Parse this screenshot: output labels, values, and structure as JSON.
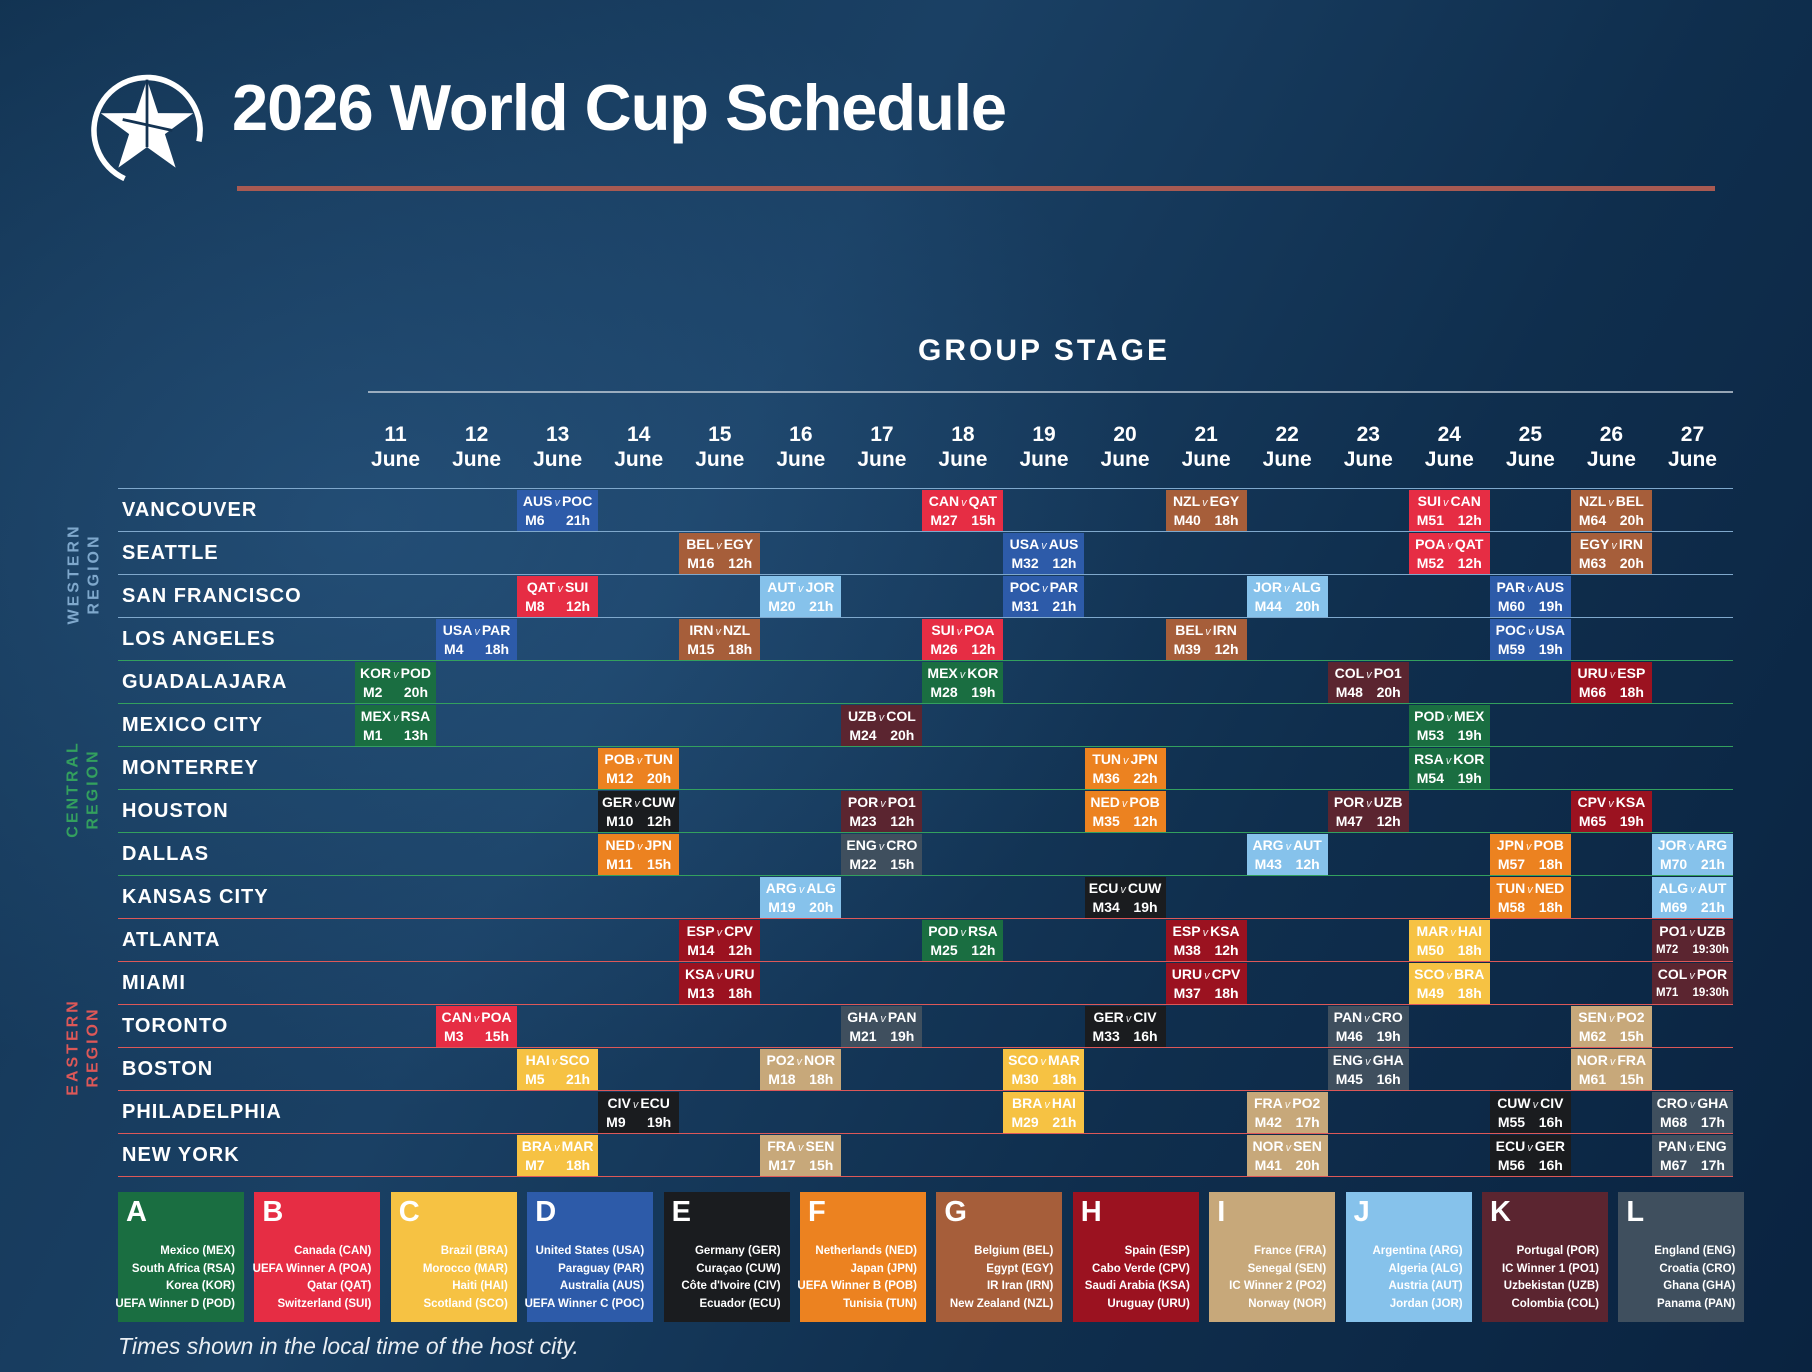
{
  "header": {
    "title": "2026 World Cup Schedule"
  },
  "stage_title": "GROUP STAGE",
  "footer_note": "Times shown in the local time of the host city.",
  "colors": {
    "groups": {
      "A": "#1a6e41",
      "B": "#e62d44",
      "C": "#f6c243",
      "D": "#2d5ba9",
      "E": "#1a1c1f",
      "F": "#ec8220",
      "G": "#a65e3a",
      "H": "#9b1220",
      "I": "#c7a87a",
      "J": "#86c2eb",
      "K": "#5b2530",
      "L": "#3f4f5e"
    },
    "regions": {
      "western": "#7fa8cc",
      "central": "#33a05e",
      "eastern": "#dd5858"
    },
    "title_underline": "#a85a52",
    "header_rule": "#c4cfd9"
  },
  "chart_data": {
    "type": "table",
    "title": "GROUP STAGE",
    "columns": [
      "11 June",
      "12 June",
      "13 June",
      "14 June",
      "15 June",
      "16 June",
      "17 June",
      "18 June",
      "19 June",
      "20 June",
      "21 June",
      "22 June",
      "23 June",
      "24 June",
      "25 June",
      "26 June",
      "27 June"
    ],
    "regions": [
      {
        "id": "western",
        "label": [
          "WESTERN",
          "REGION"
        ],
        "rows": [
          0,
          3
        ]
      },
      {
        "id": "central",
        "label": [
          "CENTRAL",
          "REGION"
        ],
        "rows": [
          4,
          9
        ]
      },
      {
        "id": "eastern",
        "label": [
          "EASTERN",
          "REGION"
        ],
        "rows": [
          10,
          15
        ]
      }
    ],
    "rows": [
      {
        "city": "VANCOUVER",
        "region": "western",
        "matches": [
          {
            "col": 2,
            "home": "AUS",
            "away": "POC",
            "match": "M6",
            "time": "21h",
            "group": "D"
          },
          {
            "col": 7,
            "home": "CAN",
            "away": "QAT",
            "match": "M27",
            "time": "15h",
            "group": "B"
          },
          {
            "col": 10,
            "home": "NZL",
            "away": "EGY",
            "match": "M40",
            "time": "18h",
            "group": "G"
          },
          {
            "col": 13,
            "home": "SUI",
            "away": "CAN",
            "match": "M51",
            "time": "12h",
            "group": "B"
          },
          {
            "col": 15,
            "home": "NZL",
            "away": "BEL",
            "match": "M64",
            "time": "20h",
            "group": "G"
          }
        ]
      },
      {
        "city": "SEATTLE",
        "region": "western",
        "matches": [
          {
            "col": 4,
            "home": "BEL",
            "away": "EGY",
            "match": "M16",
            "time": "12h",
            "group": "G"
          },
          {
            "col": 8,
            "home": "USA",
            "away": "AUS",
            "match": "M32",
            "time": "12h",
            "group": "D"
          },
          {
            "col": 13,
            "home": "POA",
            "away": "QAT",
            "match": "M52",
            "time": "12h",
            "group": "B"
          },
          {
            "col": 15,
            "home": "EGY",
            "away": "IRN",
            "match": "M63",
            "time": "20h",
            "group": "G"
          }
        ]
      },
      {
        "city": "SAN FRANCISCO",
        "region": "western",
        "matches": [
          {
            "col": 2,
            "home": "QAT",
            "away": "SUI",
            "match": "M8",
            "time": "12h",
            "group": "B"
          },
          {
            "col": 5,
            "home": "AUT",
            "away": "JOR",
            "match": "M20",
            "time": "21h",
            "group": "J"
          },
          {
            "col": 8,
            "home": "POC",
            "away": "PAR",
            "match": "M31",
            "time": "21h",
            "group": "D"
          },
          {
            "col": 11,
            "home": "JOR",
            "away": "ALG",
            "match": "M44",
            "time": "20h",
            "group": "J"
          },
          {
            "col": 14,
            "home": "PAR",
            "away": "AUS",
            "match": "M60",
            "time": "19h",
            "group": "D"
          }
        ]
      },
      {
        "city": "LOS ANGELES",
        "region": "western",
        "matches": [
          {
            "col": 1,
            "home": "USA",
            "away": "PAR",
            "match": "M4",
            "time": "18h",
            "group": "D"
          },
          {
            "col": 4,
            "home": "IRN",
            "away": "NZL",
            "match": "M15",
            "time": "18h",
            "group": "G"
          },
          {
            "col": 7,
            "home": "SUI",
            "away": "POA",
            "match": "M26",
            "time": "12h",
            "group": "B"
          },
          {
            "col": 10,
            "home": "BEL",
            "away": "IRN",
            "match": "M39",
            "time": "12h",
            "group": "G"
          },
          {
            "col": 14,
            "home": "POC",
            "away": "USA",
            "match": "M59",
            "time": "19h",
            "group": "D"
          }
        ]
      },
      {
        "city": "GUADALAJARA",
        "region": "central",
        "matches": [
          {
            "col": 0,
            "home": "KOR",
            "away": "POD",
            "match": "M2",
            "time": "20h",
            "group": "A"
          },
          {
            "col": 7,
            "home": "MEX",
            "away": "KOR",
            "match": "M28",
            "time": "19h",
            "group": "A"
          },
          {
            "col": 12,
            "home": "COL",
            "away": "PO1",
            "match": "M48",
            "time": "20h",
            "group": "K"
          },
          {
            "col": 15,
            "home": "URU",
            "away": "ESP",
            "match": "M66",
            "time": "18h",
            "group": "H"
          }
        ]
      },
      {
        "city": "MEXICO CITY",
        "region": "central",
        "matches": [
          {
            "col": 0,
            "home": "MEX",
            "away": "RSA",
            "match": "M1",
            "time": "13h",
            "group": "A"
          },
          {
            "col": 6,
            "home": "UZB",
            "away": "COL",
            "match": "M24",
            "time": "20h",
            "group": "K"
          },
          {
            "col": 13,
            "home": "POD",
            "away": "MEX",
            "match": "M53",
            "time": "19h",
            "group": "A"
          }
        ]
      },
      {
        "city": "MONTERREY",
        "region": "central",
        "matches": [
          {
            "col": 3,
            "home": "POB",
            "away": "TUN",
            "match": "M12",
            "time": "20h",
            "group": "F"
          },
          {
            "col": 9,
            "home": "TUN",
            "away": "JPN",
            "match": "M36",
            "time": "22h",
            "group": "F"
          },
          {
            "col": 13,
            "home": "RSA",
            "away": "KOR",
            "match": "M54",
            "time": "19h",
            "group": "A"
          }
        ]
      },
      {
        "city": "HOUSTON",
        "region": "central",
        "matches": [
          {
            "col": 3,
            "home": "GER",
            "away": "CUW",
            "match": "M10",
            "time": "12h",
            "group": "E"
          },
          {
            "col": 6,
            "home": "POR",
            "away": "PO1",
            "match": "M23",
            "time": "12h",
            "group": "K"
          },
          {
            "col": 9,
            "home": "NED",
            "away": "POB",
            "match": "M35",
            "time": "12h",
            "group": "F"
          },
          {
            "col": 12,
            "home": "POR",
            "away": "UZB",
            "match": "M47",
            "time": "12h",
            "group": "K"
          },
          {
            "col": 15,
            "home": "CPV",
            "away": "KSA",
            "match": "M65",
            "time": "19h",
            "group": "H"
          }
        ]
      },
      {
        "city": "DALLAS",
        "region": "central",
        "matches": [
          {
            "col": 3,
            "home": "NED",
            "away": "JPN",
            "match": "M11",
            "time": "15h",
            "group": "F"
          },
          {
            "col": 6,
            "home": "ENG",
            "away": "CRO",
            "match": "M22",
            "time": "15h",
            "group": "L"
          },
          {
            "col": 11,
            "home": "ARG",
            "away": "AUT",
            "match": "M43",
            "time": "12h",
            "group": "J"
          },
          {
            "col": 14,
            "home": "JPN",
            "away": "POB",
            "match": "M57",
            "time": "18h",
            "group": "F"
          },
          {
            "col": 16,
            "home": "JOR",
            "away": "ARG",
            "match": "M70",
            "time": "21h",
            "group": "J"
          }
        ]
      },
      {
        "city": "KANSAS CITY",
        "region": "central",
        "matches": [
          {
            "col": 5,
            "home": "ARG",
            "away": "ALG",
            "match": "M19",
            "time": "20h",
            "group": "J"
          },
          {
            "col": 9,
            "home": "ECU",
            "away": "CUW",
            "match": "M34",
            "time": "19h",
            "group": "E"
          },
          {
            "col": 14,
            "home": "TUN",
            "away": "NED",
            "match": "M58",
            "time": "18h",
            "group": "F"
          },
          {
            "col": 16,
            "home": "ALG",
            "away": "AUT",
            "match": "M69",
            "time": "21h",
            "group": "J"
          }
        ]
      },
      {
        "city": "ATLANTA",
        "region": "eastern",
        "matches": [
          {
            "col": 4,
            "home": "ESP",
            "away": "CPV",
            "match": "M14",
            "time": "12h",
            "group": "H"
          },
          {
            "col": 7,
            "home": "POD",
            "away": "RSA",
            "match": "M25",
            "time": "12h",
            "group": "A"
          },
          {
            "col": 10,
            "home": "ESP",
            "away": "KSA",
            "match": "M38",
            "time": "12h",
            "group": "H"
          },
          {
            "col": 13,
            "home": "MAR",
            "away": "HAI",
            "match": "M50",
            "time": "18h",
            "group": "C"
          },
          {
            "col": 16,
            "home": "PO1",
            "away": "UZB",
            "match": "M72",
            "time": "19:30h",
            "group": "K"
          }
        ]
      },
      {
        "city": "MIAMI",
        "region": "eastern",
        "matches": [
          {
            "col": 4,
            "home": "KSA",
            "away": "URU",
            "match": "M13",
            "time": "18h",
            "group": "H"
          },
          {
            "col": 10,
            "home": "URU",
            "away": "CPV",
            "match": "M37",
            "time": "18h",
            "group": "H"
          },
          {
            "col": 13,
            "home": "SCO",
            "away": "BRA",
            "match": "M49",
            "time": "18h",
            "group": "C"
          },
          {
            "col": 16,
            "home": "COL",
            "away": "POR",
            "match": "M71",
            "time": "19:30h",
            "group": "K"
          }
        ]
      },
      {
        "city": "TORONTO",
        "region": "eastern",
        "matches": [
          {
            "col": 1,
            "home": "CAN",
            "away": "POA",
            "match": "M3",
            "time": "15h",
            "group": "B"
          },
          {
            "col": 6,
            "home": "GHA",
            "away": "PAN",
            "match": "M21",
            "time": "19h",
            "group": "L"
          },
          {
            "col": 9,
            "home": "GER",
            "away": "CIV",
            "match": "M33",
            "time": "16h",
            "group": "E"
          },
          {
            "col": 12,
            "home": "PAN",
            "away": "CRO",
            "match": "M46",
            "time": "19h",
            "group": "L"
          },
          {
            "col": 15,
            "home": "SEN",
            "away": "PO2",
            "match": "M62",
            "time": "15h",
            "group": "I"
          }
        ]
      },
      {
        "city": "BOSTON",
        "region": "eastern",
        "matches": [
          {
            "col": 2,
            "home": "HAI",
            "away": "SCO",
            "match": "M5",
            "time": "21h",
            "group": "C"
          },
          {
            "col": 5,
            "home": "PO2",
            "away": "NOR",
            "match": "M18",
            "time": "18h",
            "group": "I"
          },
          {
            "col": 8,
            "home": "SCO",
            "away": "MAR",
            "match": "M30",
            "time": "18h",
            "group": "C"
          },
          {
            "col": 12,
            "home": "ENG",
            "away": "GHA",
            "match": "M45",
            "time": "16h",
            "group": "L"
          },
          {
            "col": 15,
            "home": "NOR",
            "away": "FRA",
            "match": "M61",
            "time": "15h",
            "group": "I"
          }
        ]
      },
      {
        "city": "PHILADELPHIA",
        "region": "eastern",
        "matches": [
          {
            "col": 3,
            "home": "CIV",
            "away": "ECU",
            "match": "M9",
            "time": "19h",
            "group": "E"
          },
          {
            "col": 8,
            "home": "BRA",
            "away": "HAI",
            "match": "M29",
            "time": "21h",
            "group": "C"
          },
          {
            "col": 11,
            "home": "FRA",
            "away": "PO2",
            "match": "M42",
            "time": "17h",
            "group": "I"
          },
          {
            "col": 14,
            "home": "CUW",
            "away": "CIV",
            "match": "M55",
            "time": "16h",
            "group": "E"
          },
          {
            "col": 16,
            "home": "CRO",
            "away": "GHA",
            "match": "M68",
            "time": "17h",
            "group": "L"
          }
        ]
      },
      {
        "city": "NEW YORK",
        "region": "eastern",
        "matches": [
          {
            "col": 2,
            "home": "BRA",
            "away": "MAR",
            "match": "M7",
            "time": "18h",
            "group": "C"
          },
          {
            "col": 5,
            "home": "FRA",
            "away": "SEN",
            "match": "M17",
            "time": "15h",
            "group": "I"
          },
          {
            "col": 11,
            "home": "NOR",
            "away": "SEN",
            "match": "M41",
            "time": "20h",
            "group": "I"
          },
          {
            "col": 14,
            "home": "ECU",
            "away": "GER",
            "match": "M56",
            "time": "16h",
            "group": "E"
          },
          {
            "col": 16,
            "home": "PAN",
            "away": "ENG",
            "match": "M67",
            "time": "17h",
            "group": "L"
          }
        ]
      }
    ]
  },
  "legend": [
    {
      "letter": "A",
      "teams": [
        "Mexico (MEX)",
        "South Africa (RSA)",
        "Korea (KOR)",
        "UEFA Winner D (POD)"
      ]
    },
    {
      "letter": "B",
      "teams": [
        "Canada (CAN)",
        "UEFA Winner A (POA)",
        "Qatar (QAT)",
        "Switzerland (SUI)"
      ]
    },
    {
      "letter": "C",
      "teams": [
        "Brazil (BRA)",
        "Morocco (MAR)",
        "Haiti (HAI)",
        "Scotland (SCO)"
      ]
    },
    {
      "letter": "D",
      "teams": [
        "United States (USA)",
        "Paraguay (PAR)",
        "Australia (AUS)",
        "UEFA Winner C (POC)"
      ]
    },
    {
      "letter": "E",
      "teams": [
        "Germany (GER)",
        "Curaçao (CUW)",
        "Côte d'Ivoire (CIV)",
        "Ecuador (ECU)"
      ]
    },
    {
      "letter": "F",
      "teams": [
        "Netherlands (NED)",
        "Japan (JPN)",
        "UEFA Winner B (POB)",
        "Tunisia (TUN)"
      ]
    },
    {
      "letter": "G",
      "teams": [
        "Belgium (BEL)",
        "Egypt (EGY)",
        "IR Iran (IRN)",
        "New Zealand (NZL)"
      ]
    },
    {
      "letter": "H",
      "teams": [
        "Spain (ESP)",
        "Cabo Verde (CPV)",
        "Saudi Arabia (KSA)",
        "Uruguay (URU)"
      ]
    },
    {
      "letter": "I",
      "teams": [
        "France (FRA)",
        "Senegal (SEN)",
        "IC Winner 2 (PO2)",
        "Norway (NOR)"
      ]
    },
    {
      "letter": "J",
      "teams": [
        "Argentina (ARG)",
        "Algeria (ALG)",
        "Austria (AUT)",
        "Jordan (JOR)"
      ]
    },
    {
      "letter": "K",
      "teams": [
        "Portugal (POR)",
        "IC Winner 1 (PO1)",
        "Uzbekistan (UZB)",
        "Colombia (COL)"
      ]
    },
    {
      "letter": "L",
      "teams": [
        "England (ENG)",
        "Croatia (CRO)",
        "Ghana (GHA)",
        "Panama (PAN)"
      ]
    }
  ]
}
